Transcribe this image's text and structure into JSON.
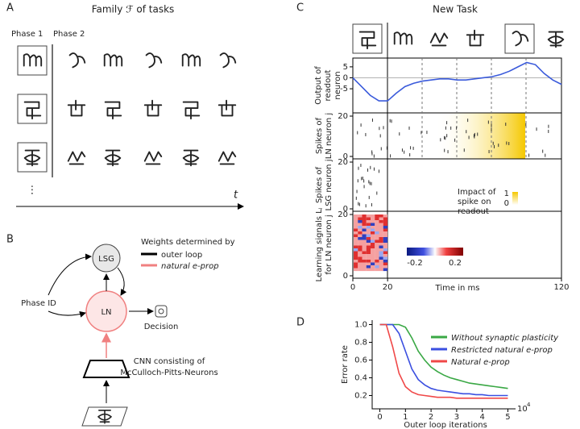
{
  "panels": {
    "A": {
      "label": "A",
      "title": "Family ℱ of tasks",
      "phase1": "Phase 1",
      "phase2": "Phase 2",
      "ellipsis": "⋮",
      "time": "t"
    },
    "B": {
      "label": "B",
      "lsg": "LSG",
      "ln": "LN",
      "phase_id": "Phase ID",
      "decision": "Decision",
      "cnn": [
        "CNN consisting of",
        "McCulloch-Pitts-Neurons"
      ],
      "legend_title": "Weights determined by",
      "legend": [
        {
          "name": "outer loop",
          "color": "#000000"
        },
        {
          "name": "natural e-prop",
          "color": "#f08080"
        }
      ]
    },
    "C": {
      "label": "C",
      "ln_label": [
        "Spikes of",
        "LN neuron j"
      ],
      "lsg_label": [
        "Spikes of",
        "LSG neuron j"
      ],
      "ls_label": [
        "Learning signals Lⱼ",
        "for LN neuron j"
      ],
      "raster_ticks": [
        20,
        0
      ],
      "impact_label": [
        "Impact of",
        "spike on",
        "readout"
      ],
      "impact_ticks": [
        1,
        0
      ],
      "signal_ticks": [
        -0.2,
        0.2
      ]
    },
    "D": {
      "label": "D"
    }
  },
  "chart_data": [
    {
      "type": "line",
      "title": "New Task",
      "ylabel": [
        "Output of",
        "readout",
        "neuron"
      ],
      "xlabel": "Time in ms",
      "x": [
        0,
        5,
        10,
        15,
        20,
        25,
        30,
        35,
        40,
        45,
        50,
        55,
        60,
        65,
        70,
        75,
        80,
        85,
        90,
        95,
        100,
        105,
        110,
        115,
        120
      ],
      "series": [
        {
          "color": "#3b5bdb",
          "values": [
            0,
            -4,
            -8,
            -10.5,
            -10.5,
            -7,
            -4,
            -2.5,
            -1.5,
            -1,
            -0.5,
            -0.5,
            -1,
            -1,
            -0.5,
            0,
            0.5,
            1.5,
            3,
            5,
            7,
            6,
            2,
            -1,
            -3
          ]
        }
      ],
      "xlim": [
        0,
        120
      ],
      "ylim": [
        -16,
        9
      ],
      "xticks": [
        0,
        20,
        120
      ],
      "yticks": [
        5,
        0,
        -5
      ]
    },
    {
      "type": "line",
      "xlabel": "Outer loop iterations",
      "ylabel": "Error rate",
      "x_multiplier": {
        "base": "10",
        "exponent": "4"
      },
      "x": [
        0,
        0.25,
        0.5,
        0.75,
        1,
        1.25,
        1.5,
        1.75,
        2,
        2.25,
        2.5,
        2.75,
        3,
        3.25,
        3.5,
        3.75,
        4,
        4.25,
        4.5,
        4.75,
        5
      ],
      "series": [
        {
          "name": "Without synaptic plasticity",
          "color": "#3aa845",
          "values": [
            1,
            1,
            1,
            1,
            0.97,
            0.85,
            0.7,
            0.6,
            0.52,
            0.47,
            0.43,
            0.4,
            0.38,
            0.36,
            0.34,
            0.33,
            0.32,
            0.31,
            0.3,
            0.29,
            0.28
          ]
        },
        {
          "name": "Restricted natural e-prop",
          "color": "#3b4fe0",
          "values": [
            1,
            1,
            1,
            0.9,
            0.7,
            0.5,
            0.38,
            0.32,
            0.28,
            0.26,
            0.25,
            0.24,
            0.23,
            0.22,
            0.22,
            0.21,
            0.21,
            0.2,
            0.2,
            0.2,
            0.2
          ]
        },
        {
          "name": "Natural e-prop",
          "color": "#f04848",
          "values": [
            1,
            1,
            0.75,
            0.45,
            0.3,
            0.24,
            0.21,
            0.2,
            0.19,
            0.18,
            0.18,
            0.18,
            0.17,
            0.17,
            0.17,
            0.17,
            0.17,
            0.17,
            0.17,
            0.17,
            0.17
          ]
        }
      ],
      "xlim": [
        -0.3,
        5.3
      ],
      "ylim": [
        0.05,
        1.05
      ],
      "xticks": [
        0,
        1,
        2,
        3,
        4,
        5
      ],
      "yticks": [
        0.2,
        0.4,
        0.6,
        0.8,
        {
          "value": 1,
          "label": "1.0"
        }
      ]
    }
  ]
}
